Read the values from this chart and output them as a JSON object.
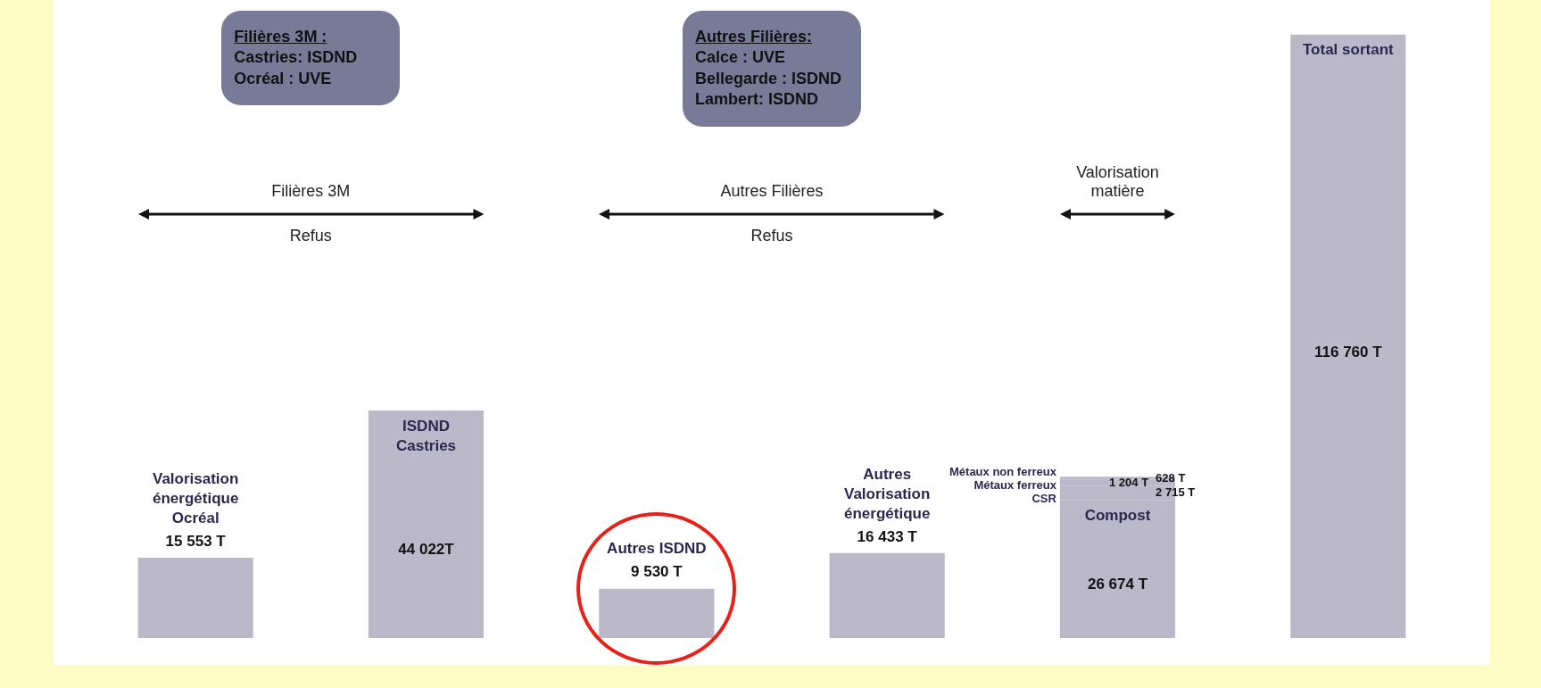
{
  "chart_data": {
    "type": "bar",
    "stacked": true,
    "tick_labels": false,
    "legend": false,
    "categories": [
      "Valorisation énergétique Ocréal",
      "ISDND Castries",
      "Autres ISDND",
      "Autres Valorisation énergétique",
      "Compost",
      "Total sortant"
    ],
    "series": [
      {
        "color": "#bab8c9",
        "values": [
          15553,
          44022,
          9530,
          16433,
          26674,
          116760
        ],
        "value_labels": [
          "15 553 T",
          "44 022T",
          "9 530 T",
          "16 433 T",
          "26 674 T",
          "116 760 T"
        ]
      },
      {
        "name": "CSR",
        "color": "#bab8c9",
        "values": [
          null,
          null,
          null,
          null,
          2715,
          null
        ],
        "value_labels": [
          null,
          null,
          null,
          null,
          "2 715 T",
          null
        ]
      },
      {
        "name": "Métaux ferreux",
        "color": "#bab8c9",
        "values": [
          null,
          null,
          null,
          null,
          1204,
          null
        ],
        "value_labels": [
          null,
          null,
          null,
          null,
          "1 204 T",
          null
        ]
      },
      {
        "name": "Métaux non ferreux",
        "color": "#bab8c9",
        "values": [
          null,
          null,
          null,
          null,
          628,
          null
        ],
        "value_labels": [
          null,
          null,
          null,
          null,
          "628 T",
          null
        ]
      }
    ],
    "annotations": [
      "Filières 3M :\nCastries: ISDND\nOcréal : UVE",
      "Filières 3M",
      "Refus",
      "Autres Filières:\nCalce : UVE\nBellegarde : ISDND\nLambert: ISDND",
      "Autres Filières",
      "Refus",
      "Valorisation matière"
    ]
  }
}
